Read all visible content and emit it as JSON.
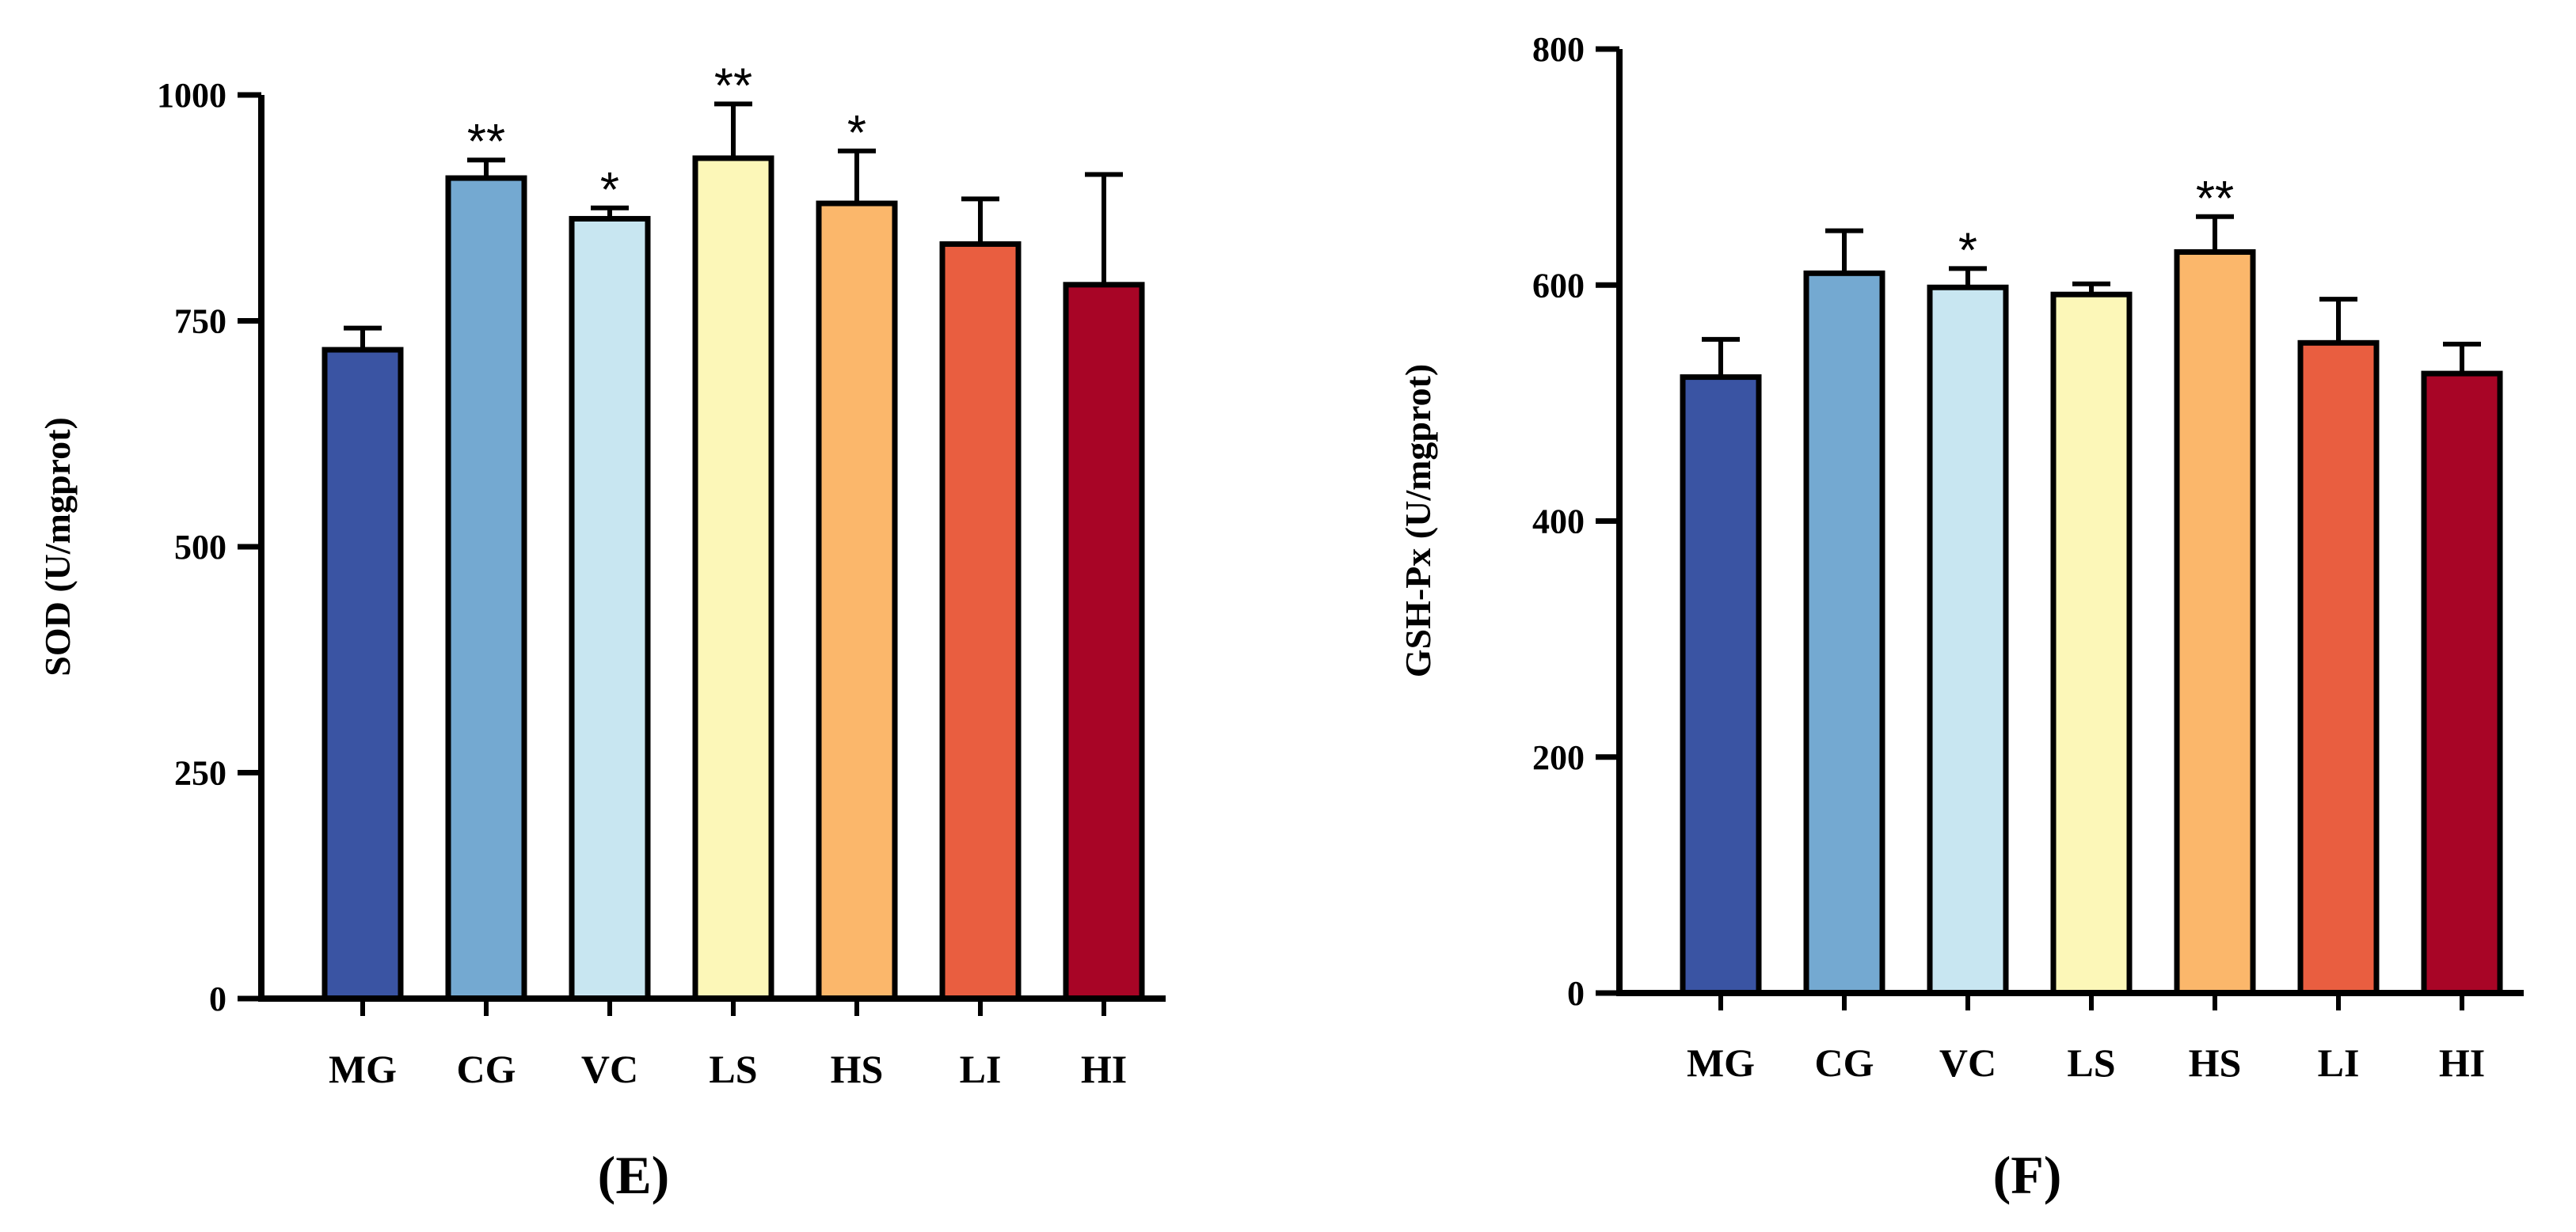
{
  "chart_data": [
    {
      "type": "bar",
      "panel_label": "(E)",
      "ylabel": "SOD (U/mgprot)",
      "xlabel": "",
      "ylim": [
        0,
        1000
      ],
      "yticks": [
        "0",
        "250",
        "500",
        "750",
        "1000"
      ],
      "ytick_values": [
        0,
        250,
        500,
        750,
        1000
      ],
      "categories": [
        "MG",
        "CG",
        "VC",
        "LS",
        "HS",
        "LI",
        "HI"
      ],
      "values": [
        718,
        908,
        863,
        930,
        880,
        835,
        790
      ],
      "errors": [
        24,
        20,
        12,
        60,
        58,
        50,
        122
      ],
      "significance": [
        "",
        "**",
        "*",
        "**",
        "*",
        "",
        ""
      ],
      "colors": [
        "#3a54a3",
        "#74a9d1",
        "#c8e6f1",
        "#fcf7b8",
        "#fbb76b",
        "#e95e40",
        "#a80526"
      ]
    },
    {
      "type": "bar",
      "panel_label": "(F)",
      "ylabel": "GSH-Px (U/mgprot)",
      "xlabel": "",
      "ylim": [
        0,
        800
      ],
      "yticks": [
        "0",
        "200",
        "400",
        "600",
        "800"
      ],
      "ytick_values": [
        0,
        200,
        400,
        600,
        800
      ],
      "categories": [
        "MG",
        "CG",
        "VC",
        "LS",
        "HS",
        "LI",
        "HI"
      ],
      "values": [
        522,
        610,
        598,
        592,
        628,
        551,
        525
      ],
      "errors": [
        32,
        36,
        16,
        9,
        30,
        37,
        25
      ],
      "significance": [
        "",
        "",
        "*",
        "",
        "**",
        "",
        ""
      ],
      "colors": [
        "#3a54a3",
        "#74a9d1",
        "#c8e6f1",
        "#fcf7b8",
        "#fbb76b",
        "#e95e40",
        "#a80526"
      ]
    }
  ]
}
